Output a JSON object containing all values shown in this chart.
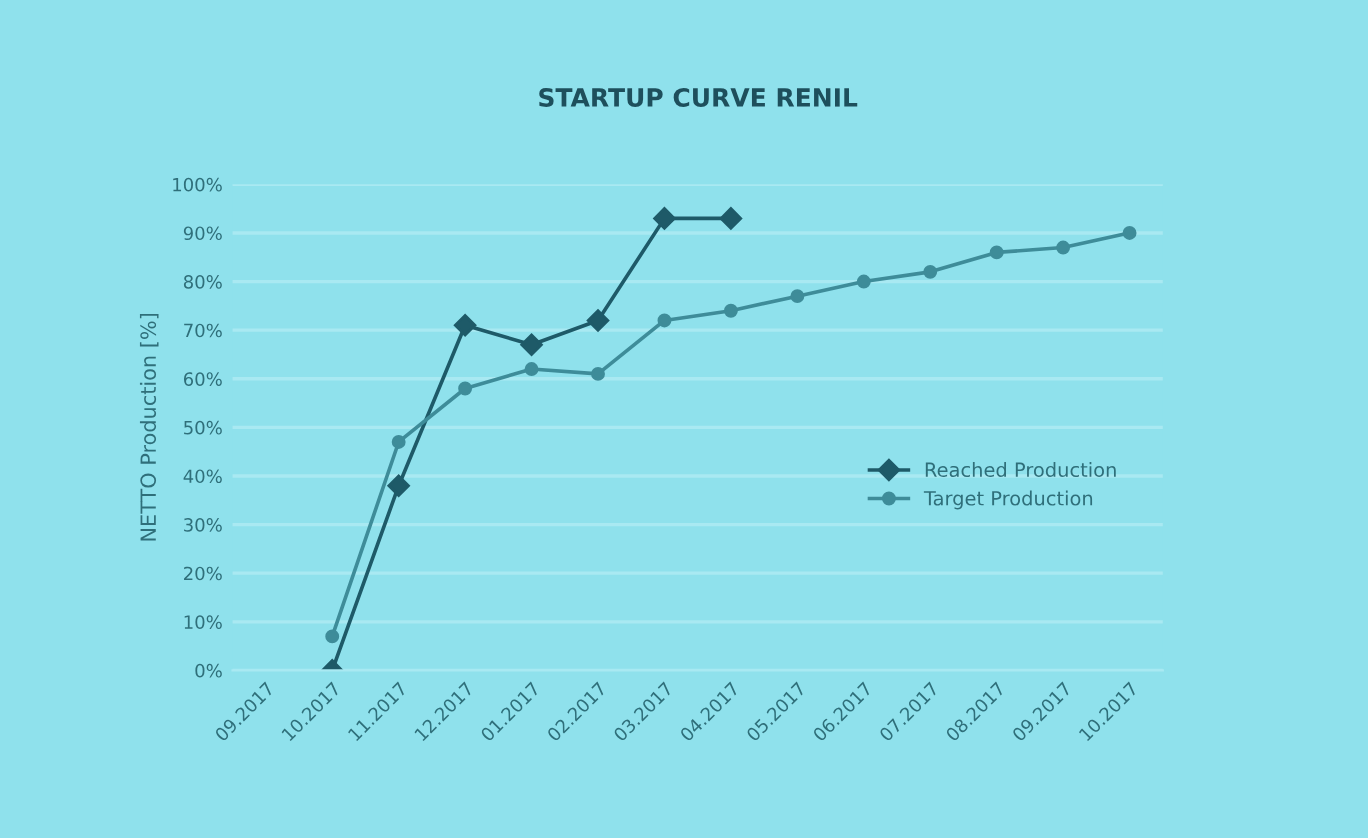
{
  "chart_data": {
    "type": "line",
    "title": "STARTUP CURVE RENIL",
    "ylabel": "NETTO Production [%]",
    "categories": [
      "09.2017",
      "10.2017",
      "11.2017",
      "12.2017",
      "01.2017",
      "02.2017",
      "03.2017",
      "04.2017",
      "05.2017",
      "06.2017",
      "07.2017",
      "08.2017",
      "09.2017",
      "10.2017"
    ],
    "series": [
      {
        "name": "Reached Production",
        "color": "#1e5a68",
        "marker": "diamond",
        "values": [
          null,
          0,
          38,
          71,
          67,
          72,
          93,
          93,
          null,
          null,
          null,
          null,
          null,
          null
        ]
      },
      {
        "name": "Target Production",
        "color": "#3e8c99",
        "marker": "circle",
        "values": [
          null,
          7,
          47,
          58,
          62,
          61,
          72,
          74,
          77,
          80,
          82,
          86,
          87,
          90
        ]
      }
    ],
    "ylim": [
      0,
      100
    ],
    "yticks": [
      {
        "value": 0,
        "label": "0%"
      },
      {
        "value": 10,
        "label": "10%"
      },
      {
        "value": 20,
        "label": "20%"
      },
      {
        "value": 30,
        "label": "30%"
      },
      {
        "value": 40,
        "label": "40%"
      },
      {
        "value": 50,
        "label": "50%"
      },
      {
        "value": 60,
        "label": "60%"
      },
      {
        "value": 70,
        "label": "70%"
      },
      {
        "value": 80,
        "label": "80%"
      },
      {
        "value": 90,
        "label": "90%"
      },
      {
        "value": 100,
        "label": "100%"
      }
    ],
    "grid": "y",
    "legend": "right",
    "line_style": "solid"
  }
}
